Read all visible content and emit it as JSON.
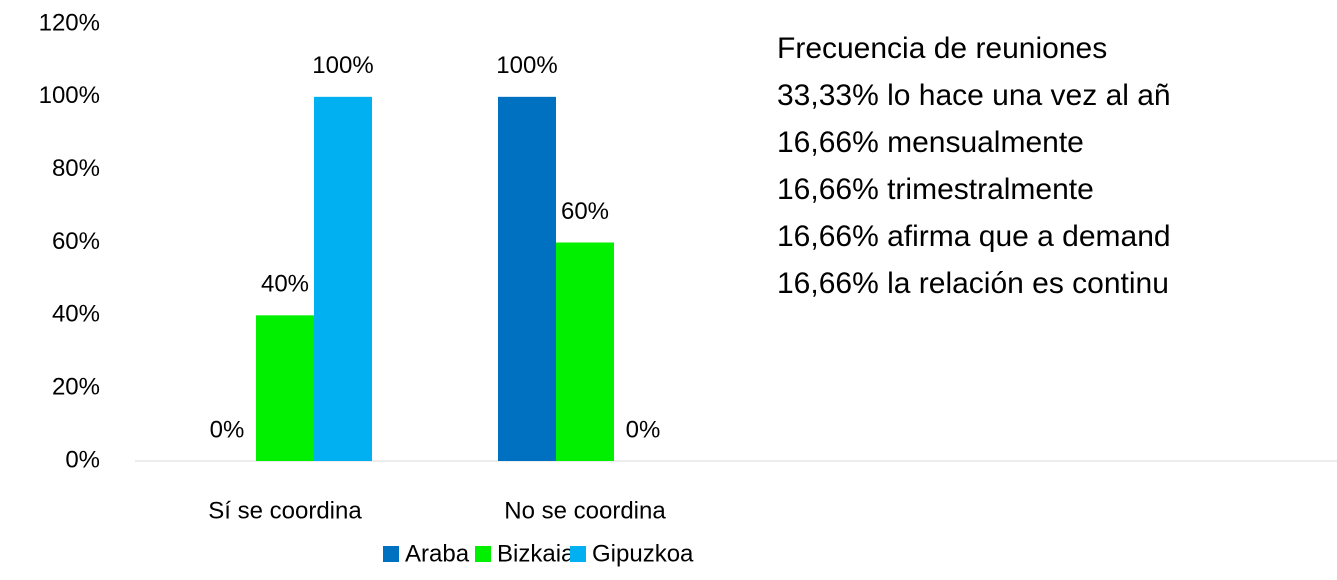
{
  "chart_data": {
    "type": "bar",
    "categories": [
      "Sí se coordina",
      "No se coordina"
    ],
    "series": [
      {
        "name": "Araba",
        "color": "#0070c0",
        "values": [
          0,
          100
        ],
        "value_labels": [
          "0%",
          "100%"
        ]
      },
      {
        "name": "Bizkaia",
        "color": "#00f000",
        "values": [
          40,
          60
        ],
        "value_labels": [
          "40%",
          "60%"
        ]
      },
      {
        "name": "Gipuzkoa",
        "color": "#00b0f0",
        "values": [
          100,
          0
        ],
        "value_labels": [
          "100%",
          "0%"
        ]
      }
    ],
    "ylim": [
      0,
      120
    ],
    "yticks": [
      {
        "value": 0,
        "label": "0%"
      },
      {
        "value": 20,
        "label": "20%"
      },
      {
        "value": 40,
        "label": "40%"
      },
      {
        "value": 60,
        "label": "60%"
      },
      {
        "value": 80,
        "label": "80%"
      },
      {
        "value": 100,
        "label": "100%"
      },
      {
        "value": 120,
        "label": "120%"
      }
    ],
    "grid": false,
    "legend": "bottom",
    "annotations": [
      "Frecuencia de reuniones",
      "33,33% lo hace una vez al añ",
      "16,66% mensualmente",
      "16,66% trimestralmente",
      "16,66% afirma que a demand",
      "16,66% la relación es continu"
    ]
  }
}
